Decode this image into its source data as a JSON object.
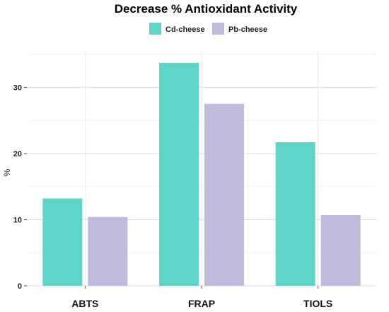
{
  "chart_data": {
    "type": "bar",
    "title": "Decrease % Antioxidant Activity",
    "xlabel": "",
    "ylabel": "%",
    "categories": [
      "ABTS",
      "FRAP",
      "TIOLS"
    ],
    "series": [
      {
        "name": "Cd-cheese",
        "values": [
          13.2,
          33.7,
          21.7
        ],
        "color": "#5fd5c8"
      },
      {
        "name": "Pb-cheese",
        "values": [
          10.4,
          27.5,
          10.7
        ],
        "color": "#c0badd"
      }
    ],
    "ylim": [
      0,
      35.5
    ],
    "yticks": [
      0,
      10,
      20,
      30
    ],
    "grid": true,
    "legend_position": "top"
  }
}
